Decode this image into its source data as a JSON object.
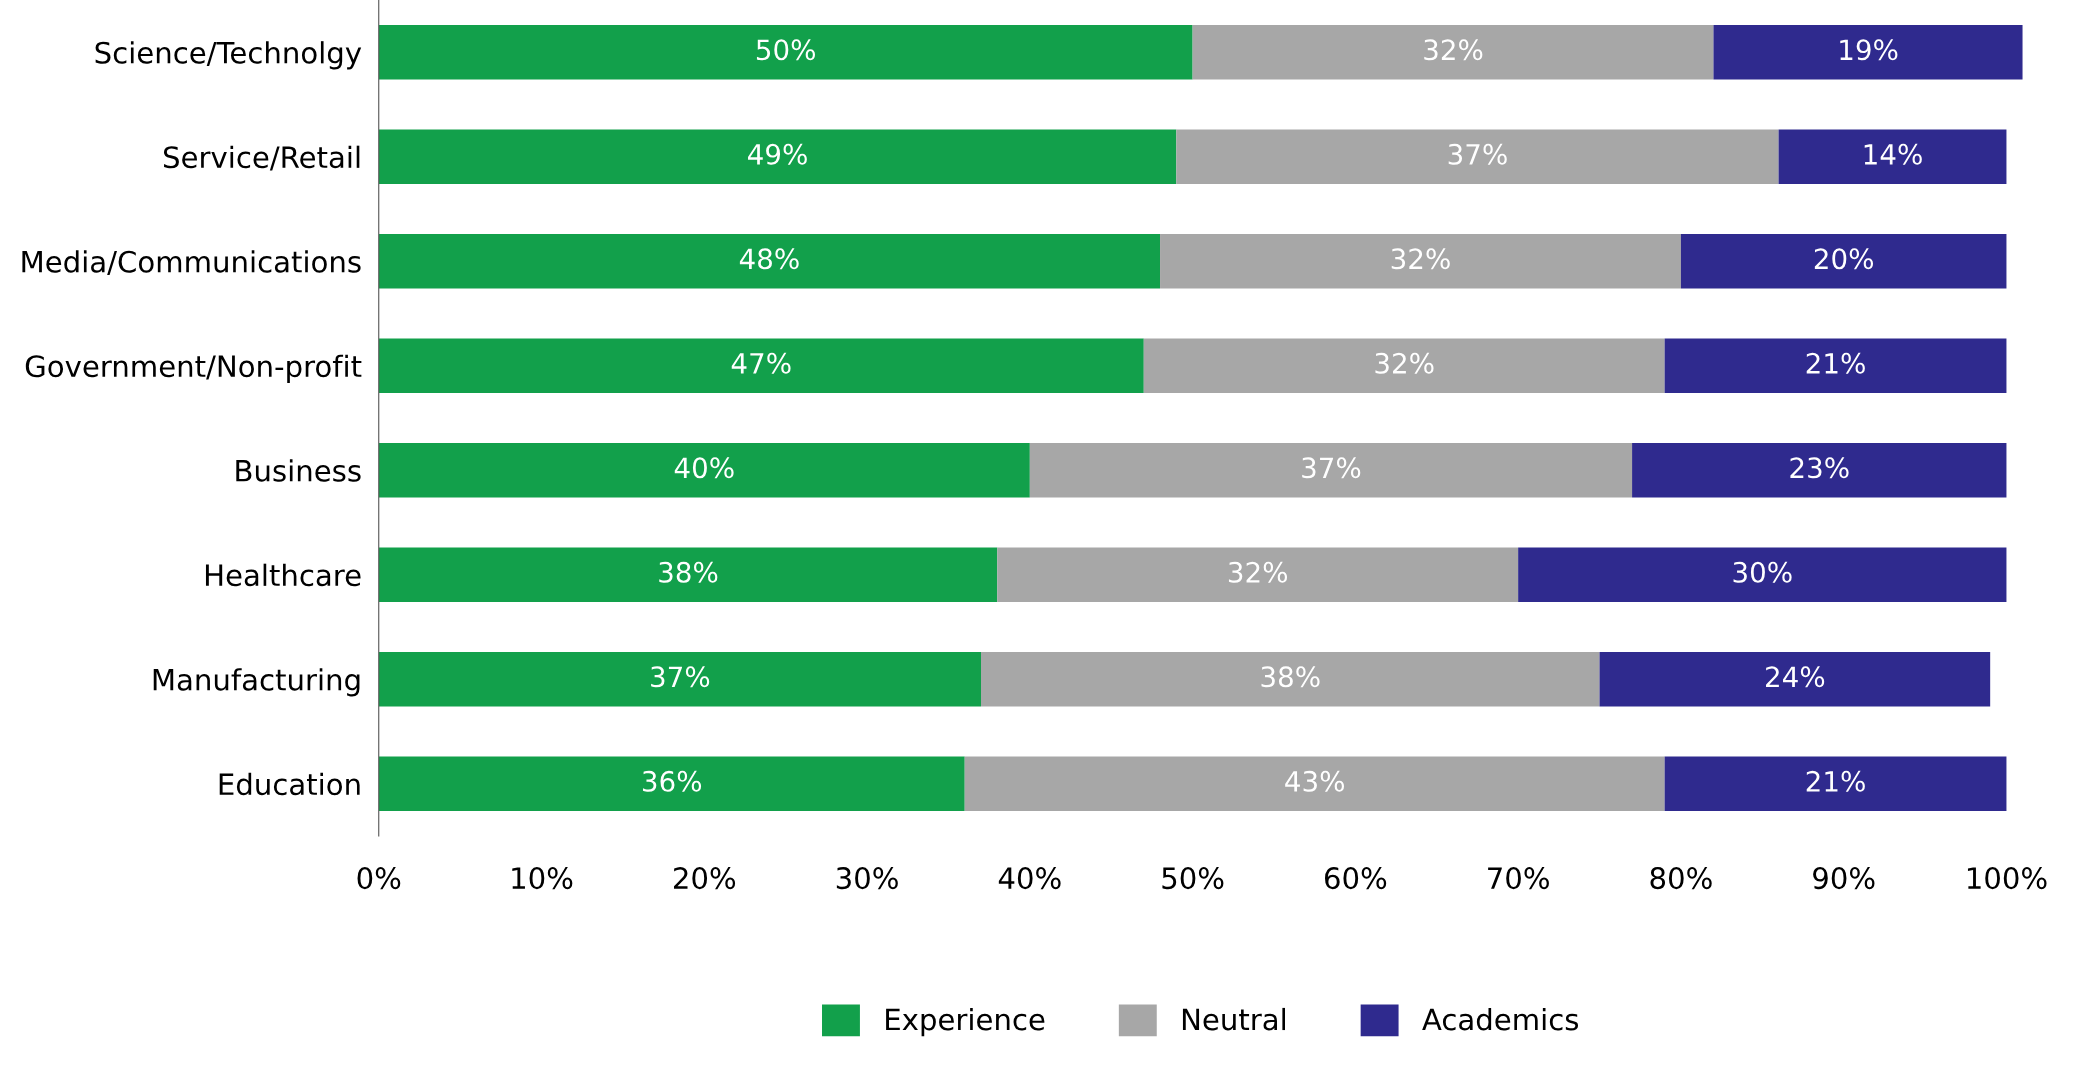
{
  "chart_data": {
    "type": "bar",
    "orientation": "horizontal",
    "stacked": true,
    "categories": [
      "Science/Technolgy",
      "Service/Retail",
      "Media/Communications",
      "Government/Non-profit",
      "Business",
      "Healthcare",
      "Manufacturing",
      "Education"
    ],
    "series": [
      {
        "name": "Experience",
        "color": "#12a04b",
        "values": [
          50,
          49,
          48,
          47,
          40,
          38,
          37,
          36
        ],
        "value_labels": [
          "50%",
          "49%",
          "48%",
          "47%",
          "40%",
          "38%",
          "37%",
          "36%"
        ]
      },
      {
        "name": "Neutral",
        "color": "#a7a7a7",
        "values": [
          32,
          37,
          32,
          32,
          37,
          32,
          38,
          43
        ],
        "value_labels": [
          "32%",
          "37%",
          "32%",
          "32%",
          "37%",
          "32%",
          "38%",
          "43%"
        ]
      },
      {
        "name": "Academics",
        "color": "#2f2a8e",
        "values": [
          19,
          14,
          20,
          21,
          23,
          30,
          24,
          21
        ],
        "value_labels": [
          "19%",
          "14%",
          "20%",
          "21%",
          "23%",
          "30%",
          "24%",
          "21%"
        ]
      }
    ],
    "xlim": [
      0,
      101
    ],
    "xticks": [
      {
        "value": 0,
        "label": "0%"
      },
      {
        "value": 10,
        "label": "10%"
      },
      {
        "value": 20,
        "label": "20%"
      },
      {
        "value": 30,
        "label": "30%"
      },
      {
        "value": 40,
        "label": "40%"
      },
      {
        "value": 50,
        "label": "50%"
      },
      {
        "value": 60,
        "label": "60%"
      },
      {
        "value": 70,
        "label": "70%"
      },
      {
        "value": 80,
        "label": "80%"
      },
      {
        "value": 90,
        "label": "90%"
      },
      {
        "value": 100,
        "label": "100%"
      }
    ],
    "grid": false,
    "legend": "bottom"
  }
}
